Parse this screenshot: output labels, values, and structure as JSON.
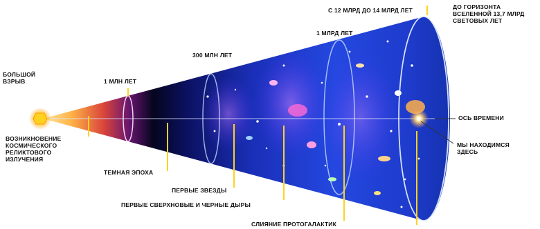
{
  "labels": {
    "big_bang": "БОЛЬШОЙ ВЗРЫВ",
    "one_myr": "1 МЛН ЛЕТ",
    "three_hundred_myr": "300 МЛН ЛЕТ",
    "one_gyr": "1 МЛРД ЛЕТ",
    "twelve_fourteen_gyr": "С 12 МЛРД ДО 14 МЛРД ЛЕТ",
    "horizon": "ДО ГОРИЗОНТА ВСЕЛЕННОЙ 13,7 МЛРД СВЕТОВЫХ ЛЕТ",
    "time_axis": "ОСЬ ВРЕМЕНИ",
    "we_are_here": "МЫ НАХОДИМСЯ ЗДЕСЬ",
    "cmb": "ВОЗНИКНОВЕНИЕ КОСМИЧЕСКОГО РЕЛИКТОВОГО ИЗЛУЧЕНИЯ",
    "dark_age": "ТЕМНАЯ ЭПОХА",
    "first_stars": "ПЕРВЫЕ ЗВЕЗДЫ",
    "first_supernovae": "ПЕРВЫЕ СВЕРХНОВЫЕ И ЧЕРНЫЕ ДЫРЫ",
    "protogalaxy_merger": "СЛИЯНИЕ ПРОТОГАЛАКТИК"
  },
  "colors": {
    "deep_space": "#0a1a8a",
    "bright_space": "#2a55ff",
    "glow_orange": "#ffb000",
    "guide_lines": "#ffd21f"
  }
}
